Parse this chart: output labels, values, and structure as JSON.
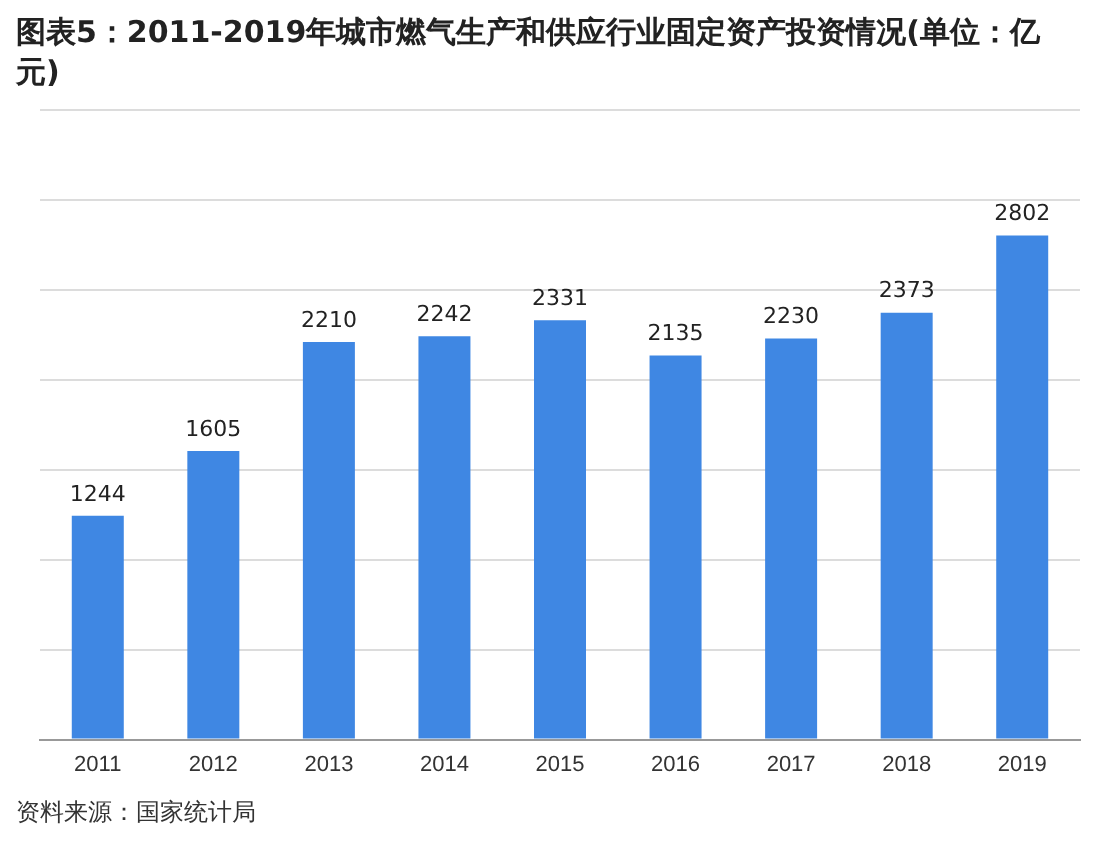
{
  "chart_data": {
    "type": "bar",
    "title": "图表5：2011-2019年城市燃气生产和供应行业固定资产投资情况(单位：亿元)",
    "categories": [
      "2011",
      "2012",
      "2013",
      "2014",
      "2015",
      "2016",
      "2017",
      "2018",
      "2019"
    ],
    "values": [
      1244,
      1605,
      2210,
      2242,
      2331,
      2135,
      2230,
      2373,
      2802
    ],
    "color": "#3f87e3",
    "ylim": [
      0,
      3500
    ],
    "yticks": [
      {
        "value": 0,
        "label": null
      },
      {
        "value": 500,
        "label": null
      },
      {
        "value": 1000,
        "label": null
      },
      {
        "value": 1500,
        "label": null
      },
      {
        "value": 2000,
        "label": null
      },
      {
        "value": 2500,
        "label": null
      },
      {
        "value": 3000,
        "label": null
      },
      {
        "value": 3500,
        "label": null
      }
    ],
    "tick_labels": "x",
    "grid": "y",
    "data_labels": true,
    "annotations": [
      "资料来源：国家统计局"
    ]
  }
}
